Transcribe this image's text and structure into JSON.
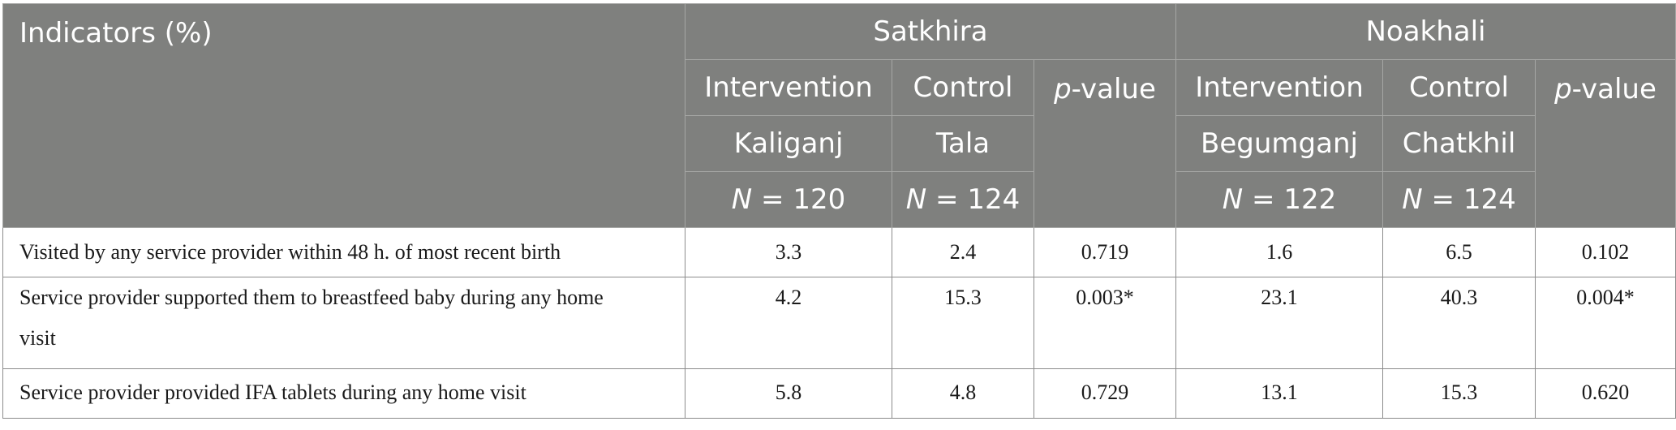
{
  "header": {
    "indicators_label": "Indicators (%)",
    "region1": "Satkhira",
    "region2": "Noakhali",
    "intervention": "Intervention",
    "control": "Control",
    "pvalue_italic": "p",
    "pvalue_rest": "-value",
    "r1_intervention_area": "Kaliganj",
    "r1_control_area": "Tala",
    "r2_intervention_area": "Begumganj",
    "r2_control_area": "Chatkhil",
    "n_italic": "N",
    "r1_intervention_n": " = 120",
    "r1_control_n": " = 124",
    "r2_intervention_n": " = 122",
    "r2_control_n": " = 124"
  },
  "rows": [
    {
      "label": "Visited by any service provider within 48 h. of most recent birth",
      "values": [
        "3.3",
        "2.4",
        "0.719",
        "1.6",
        "6.5",
        "0.102"
      ]
    },
    {
      "label": "Service provider supported them to breastfeed baby during any home visit",
      "values": [
        "4.2",
        "15.3",
        "0.003*",
        "23.1",
        "40.3",
        "0.004*"
      ]
    },
    {
      "label": "Service provider provided IFA tablets during any home visit",
      "values": [
        "5.8",
        "4.8",
        "0.729",
        "13.1",
        "15.3",
        "0.620"
      ]
    }
  ],
  "colors": {
    "header_bg": "#7f807e",
    "header_text": "#ffffff",
    "border": "#8c8c8c"
  }
}
